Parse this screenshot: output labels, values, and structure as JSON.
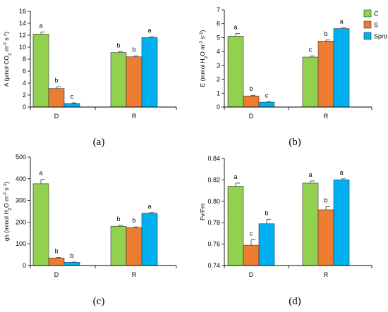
{
  "legend": [
    {
      "name": "C",
      "color": "#92d050"
    },
    {
      "name": "S",
      "color": "#ed7d31"
    },
    {
      "name": "Spro",
      "color": "#00b0f0"
    }
  ],
  "chart_data": [
    {
      "type": "bar",
      "panel_label": "(a)",
      "ylabel": "A (μmol CO2 m-2 s-1)",
      "ylim": [
        0,
        16
      ],
      "yticks": [
        "0",
        "2",
        "4",
        "6",
        "8",
        "10",
        "12",
        "14",
        "16"
      ],
      "categories": [
        "D",
        "R"
      ],
      "series": [
        {
          "name": "C",
          "values": [
            12.2,
            9.1
          ],
          "errors": [
            0.35,
            0.15
          ],
          "letters": [
            "a",
            "b"
          ]
        },
        {
          "name": "S",
          "values": [
            3.1,
            8.4
          ],
          "errors": [
            0.3,
            0.15
          ],
          "letters": [
            "b",
            "b"
          ]
        },
        {
          "name": "Spro",
          "values": [
            0.6,
            11.6
          ],
          "errors": [
            0.1,
            0.15
          ],
          "letters": [
            "c",
            "a"
          ]
        }
      ]
    },
    {
      "type": "bar",
      "panel_label": "(b)",
      "ylabel": "E (mmol H2O m-2 s-1)",
      "ylim": [
        0,
        7
      ],
      "yticks": [
        "0",
        "1",
        "2",
        "3",
        "4",
        "5",
        "6",
        "7"
      ],
      "categories": [
        "D",
        "R"
      ],
      "series": [
        {
          "name": "C",
          "values": [
            5.1,
            3.6
          ],
          "errors": [
            0.2,
            0.07
          ],
          "letters": [
            "a",
            "c"
          ]
        },
        {
          "name": "S",
          "values": [
            0.8,
            4.75
          ],
          "errors": [
            0.05,
            0.08
          ],
          "letters": [
            "b",
            "b"
          ]
        },
        {
          "name": "Spro",
          "values": [
            0.35,
            5.65
          ],
          "errors": [
            0.03,
            0.05
          ],
          "letters": [
            "c",
            "a"
          ]
        }
      ]
    },
    {
      "type": "bar",
      "panel_label": "(c)",
      "ylabel": "gs (mmol H2O m-2 s-1)",
      "ylim": [
        0,
        500
      ],
      "yticks": [
        "0",
        "100",
        "200",
        "300",
        "400",
        "500"
      ],
      "categories": [
        "D",
        "R"
      ],
      "series": [
        {
          "name": "C",
          "values": [
            377,
            181
          ],
          "errors": [
            20,
            4
          ],
          "letters": [
            "a",
            "b"
          ]
        },
        {
          "name": "S",
          "values": [
            35,
            175
          ],
          "errors": [
            2,
            3
          ],
          "letters": [
            "b",
            "b"
          ]
        },
        {
          "name": "Spro",
          "values": [
            15,
            241
          ],
          "errors": [
            1,
            3
          ],
          "letters": [
            "b",
            "a"
          ]
        }
      ]
    },
    {
      "type": "bar",
      "panel_label": "(d)",
      "ylabel": "Fv/Fm",
      "ylim": [
        0.74,
        0.84
      ],
      "yticks": [
        "0.74",
        "0.76",
        "0.78",
        "0.80",
        "0.82",
        "0.84"
      ],
      "categories": [
        "D",
        "R"
      ],
      "series": [
        {
          "name": "C",
          "values": [
            0.814,
            0.817
          ],
          "errors": [
            0.003,
            0.002
          ],
          "letters": [
            "a",
            "a"
          ]
        },
        {
          "name": "S",
          "values": [
            0.759,
            0.792
          ],
          "errors": [
            0.005,
            0.003
          ],
          "letters": [
            "c",
            "b"
          ]
        },
        {
          "name": "Spro",
          "values": [
            0.779,
            0.82
          ],
          "errors": [
            0.004,
            0.001
          ],
          "letters": [
            "b",
            "a"
          ]
        }
      ]
    }
  ]
}
